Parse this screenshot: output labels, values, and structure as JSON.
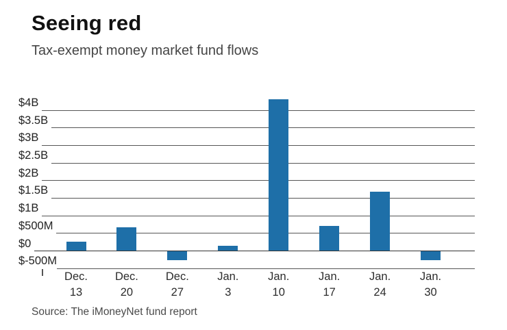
{
  "header": {
    "title": "Seeing red",
    "subtitle": "Tax-exempt money market fund flows"
  },
  "source": "Source: The iMoneyNet fund report",
  "colors": {
    "bar": "#1e6fa8",
    "grid": "#555555",
    "zero_line": "#333333",
    "title_text": "#111111",
    "subtitle_text": "#454545",
    "axis_text": "#2c2c2c",
    "source_text": "#4a4a4a",
    "background": "#ffffff"
  },
  "chart_data": {
    "type": "bar",
    "title": "Seeing red",
    "subtitle": "Tax-exempt money market fund flows",
    "categories": [
      {
        "line1": "Dec.",
        "line2": "13"
      },
      {
        "line1": "Dec.",
        "line2": "20"
      },
      {
        "line1": "Dec.",
        "line2": "27"
      },
      {
        "line1": "Jan.",
        "line2": "3"
      },
      {
        "line1": "Jan.",
        "line2": "10"
      },
      {
        "line1": "Jan.",
        "line2": "17"
      },
      {
        "line1": "Jan.",
        "line2": "24"
      },
      {
        "line1": "Jan.",
        "line2": "30"
      }
    ],
    "values_millions": [
      250,
      670,
      -250,
      140,
      4300,
      700,
      1670,
      -250
    ],
    "y_ticks": [
      {
        "label": "$4B",
        "value": 4000
      },
      {
        "label": "$3.5B",
        "value": 3500
      },
      {
        "label": "$3B",
        "value": 3000
      },
      {
        "label": "$2.5B",
        "value": 2500
      },
      {
        "label": "$2B",
        "value": 2000
      },
      {
        "label": "$1.5B",
        "value": 1500
      },
      {
        "label": "$1B",
        "value": 1000
      },
      {
        "label": "$500M",
        "value": 500
      },
      {
        "label": "$0",
        "value": 0
      },
      {
        "label": "$-500M",
        "value": -500
      }
    ],
    "ylim_millions": [
      -650,
      4450
    ],
    "grid": true,
    "legend": false,
    "bar_color": "#1e6fa8",
    "source": "Source: The iMoneyNet fund report"
  }
}
